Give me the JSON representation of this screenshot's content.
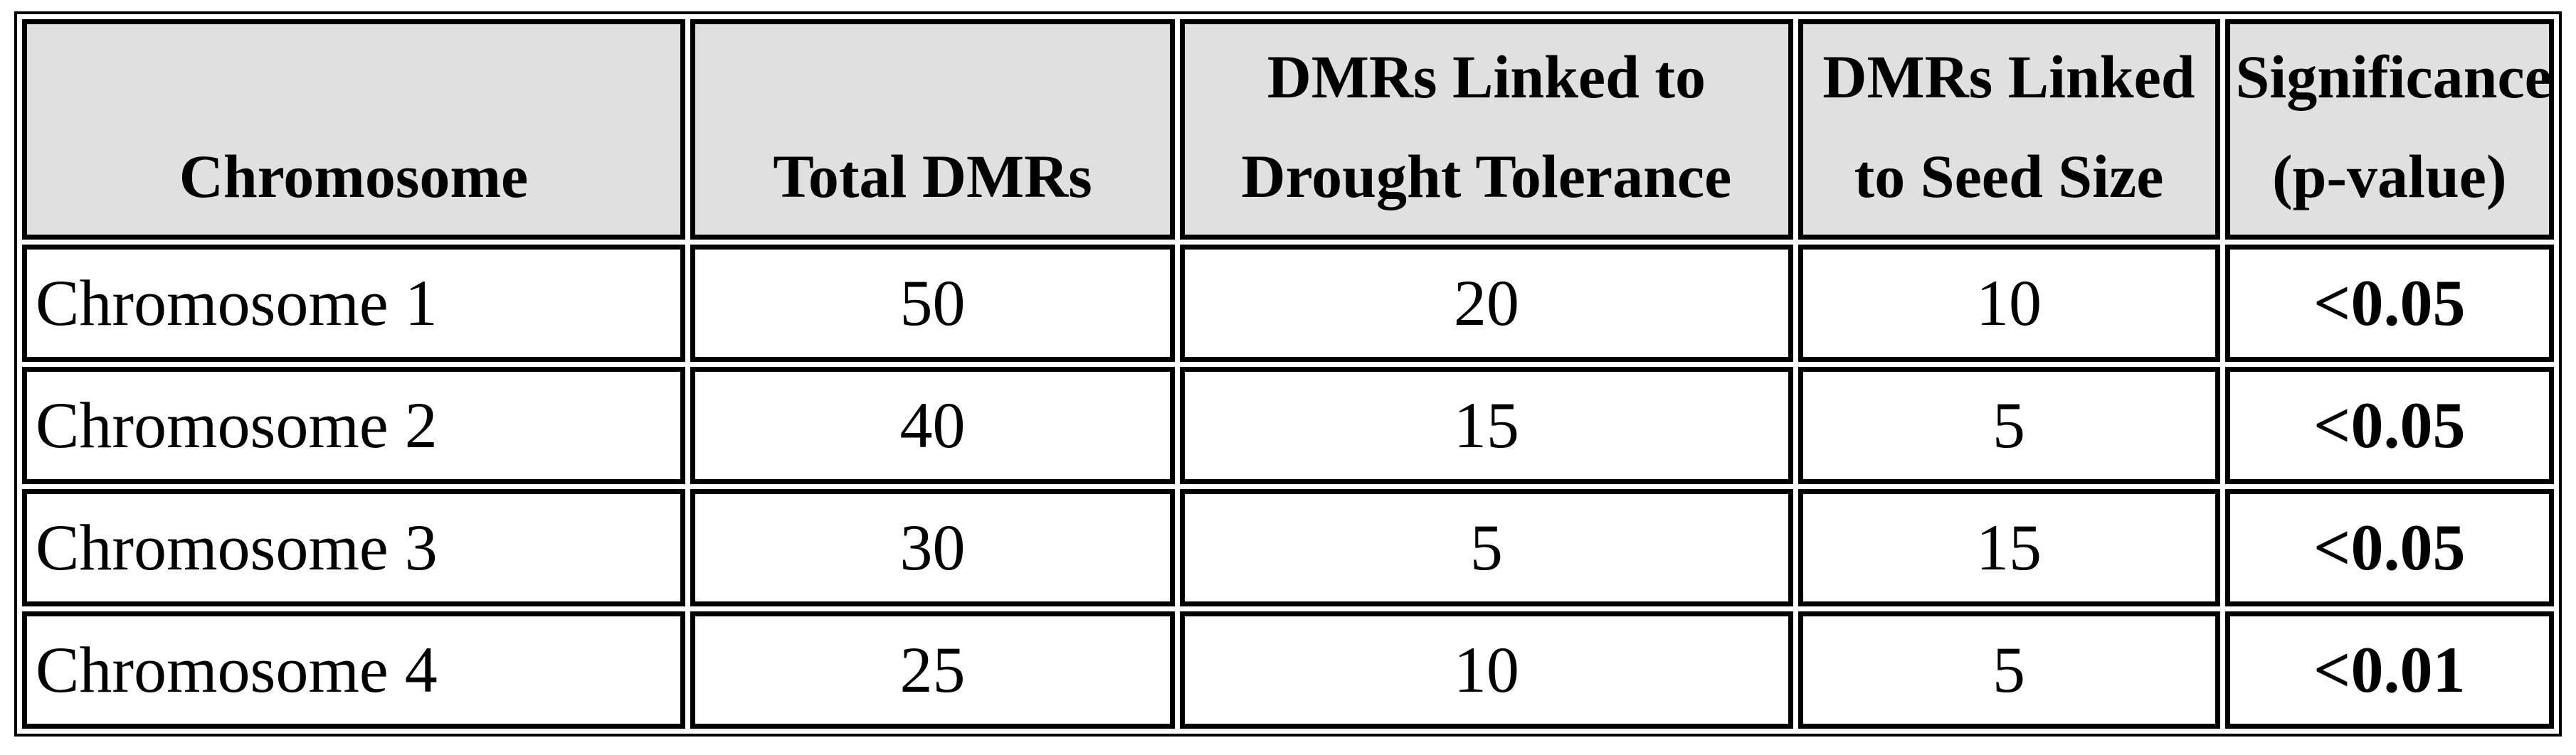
{
  "colors": {
    "header_bg": "#e0e0e0",
    "border": "#000000",
    "text": "#000000",
    "cell_bg": "#ffffff"
  },
  "table": {
    "headers": [
      "Chromosome",
      "Total DMRs",
      "DMRs Linked to\nDrought Tolerance",
      "DMRs Linked\nto Seed Size",
      "Significance\n(p-value)"
    ],
    "rows": [
      {
        "cells": [
          "Chromosome 1",
          "50",
          "20",
          "10",
          "<0.05"
        ]
      },
      {
        "cells": [
          "Chromosome 2",
          "40",
          "15",
          "5",
          "<0.05"
        ]
      },
      {
        "cells": [
          "Chromosome 3",
          "30",
          "5",
          "15",
          "<0.05"
        ]
      },
      {
        "cells": [
          "Chromosome 4",
          "25",
          "10",
          "5",
          "<0.01"
        ]
      }
    ]
  },
  "chart_data": {
    "type": "table",
    "columns": [
      "Chromosome",
      "Total DMRs",
      "DMRs Linked to Drought Tolerance",
      "DMRs Linked to Seed Size",
      "Significance (p-value)"
    ],
    "rows": [
      [
        "Chromosome 1",
        50,
        20,
        10,
        "<0.05"
      ],
      [
        "Chromosome 2",
        40,
        15,
        5,
        "<0.05"
      ],
      [
        "Chromosome 3",
        30,
        5,
        15,
        "<0.05"
      ],
      [
        "Chromosome 4",
        25,
        10,
        5,
        "<0.01"
      ]
    ],
    "title": "",
    "notes": "Bold p-values in Significance column; grey header row; double black cell borders"
  }
}
